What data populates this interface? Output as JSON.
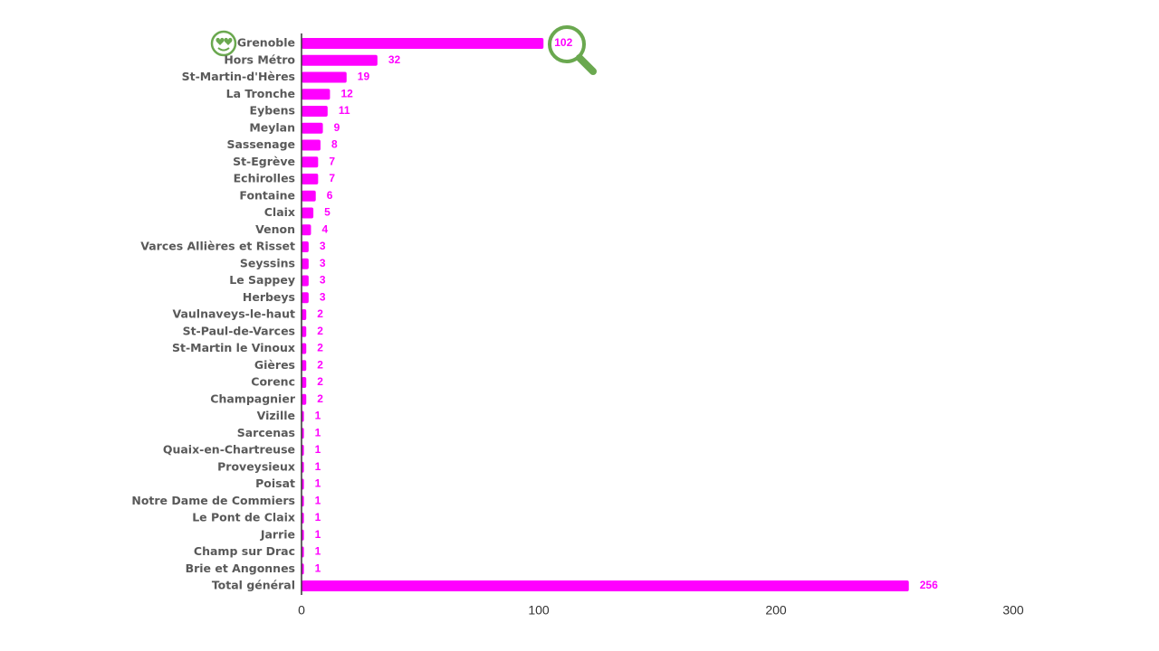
{
  "chart_data": {
    "type": "bar",
    "orientation": "horizontal",
    "categories": [
      "Grenoble",
      "Hors Métro",
      "St-Martin-d'Hères",
      "La Tronche",
      "Eybens",
      "Meylan",
      "Sassenage",
      "St-Egrève",
      "Echirolles",
      "Fontaine",
      "Claix",
      "Venon",
      "Varces Allières et Risset",
      "Seyssins",
      "Le Sappey",
      "Herbeys",
      "Vaulnaveys-le-haut",
      "St-Paul-de-Varces",
      "St-Martin le Vinoux",
      "Gières",
      "Corenc",
      "Champagnier",
      "Vizille",
      "Sarcenas",
      "Quaix-en-Chartreuse",
      "Proveysieux",
      "Poisat",
      "Notre Dame de Commiers",
      "Le Pont de Claix",
      "Jarrie",
      "Champ sur Drac",
      "Brie et Angonnes",
      "Total général"
    ],
    "values": [
      102,
      32,
      19,
      12,
      11,
      9,
      8,
      7,
      7,
      6,
      5,
      4,
      3,
      3,
      3,
      3,
      2,
      2,
      2,
      2,
      2,
      2,
      1,
      1,
      1,
      1,
      1,
      1,
      1,
      1,
      1,
      1,
      256
    ],
    "color": "#ff00ff",
    "xlim": [
      0,
      300
    ],
    "xticks": [
      0,
      100,
      200,
      300
    ]
  }
}
